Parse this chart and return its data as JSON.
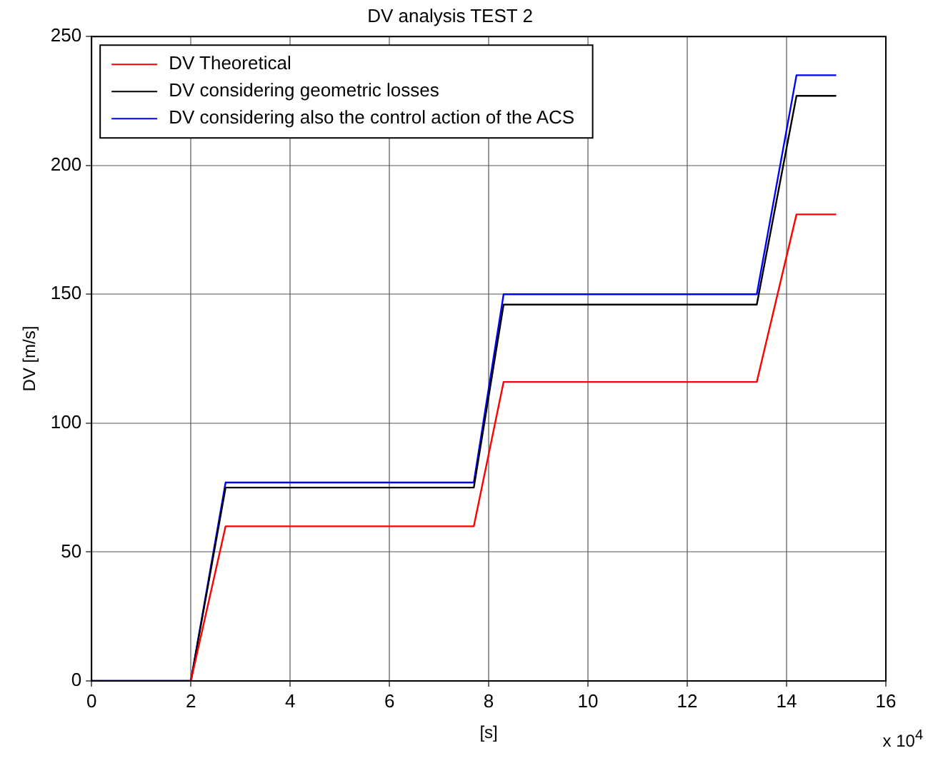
{
  "chart_data": {
    "type": "line",
    "title": "DV analysis TEST 2",
    "xlabel": "[s]",
    "ylabel": "DV [m/s]",
    "annotations": [
      "x 10$^{4}$"
    ],
    "x": [
      0,
      2.0,
      2.7,
      7.7,
      8.3,
      13.4,
      14.2,
      15
    ],
    "series": [
      {
        "name": "DV Theoretical",
        "color": "#ff0000",
        "values": [
          null,
          0,
          60,
          60,
          116,
          116,
          181,
          181
        ]
      },
      {
        "name": "DV considering geometric losses",
        "color": "#000000",
        "values": [
          0,
          0,
          75,
          75,
          146,
          146,
          227,
          227
        ]
      },
      {
        "name": "DV considering also the control action of the ACS",
        "color": "#0000ff",
        "values": [
          0,
          0,
          77,
          77,
          150,
          150,
          235,
          235
        ]
      }
    ],
    "xlim": [
      0,
      16
    ],
    "xticks": [
      0,
      2,
      4,
      6,
      8,
      10,
      12,
      14,
      16
    ],
    "ylim": [
      0,
      250
    ],
    "yticks": [
      0,
      50,
      100,
      150,
      200,
      250
    ],
    "grid": true,
    "legend": "top left",
    "line_style": "solid",
    "marker": "none"
  }
}
